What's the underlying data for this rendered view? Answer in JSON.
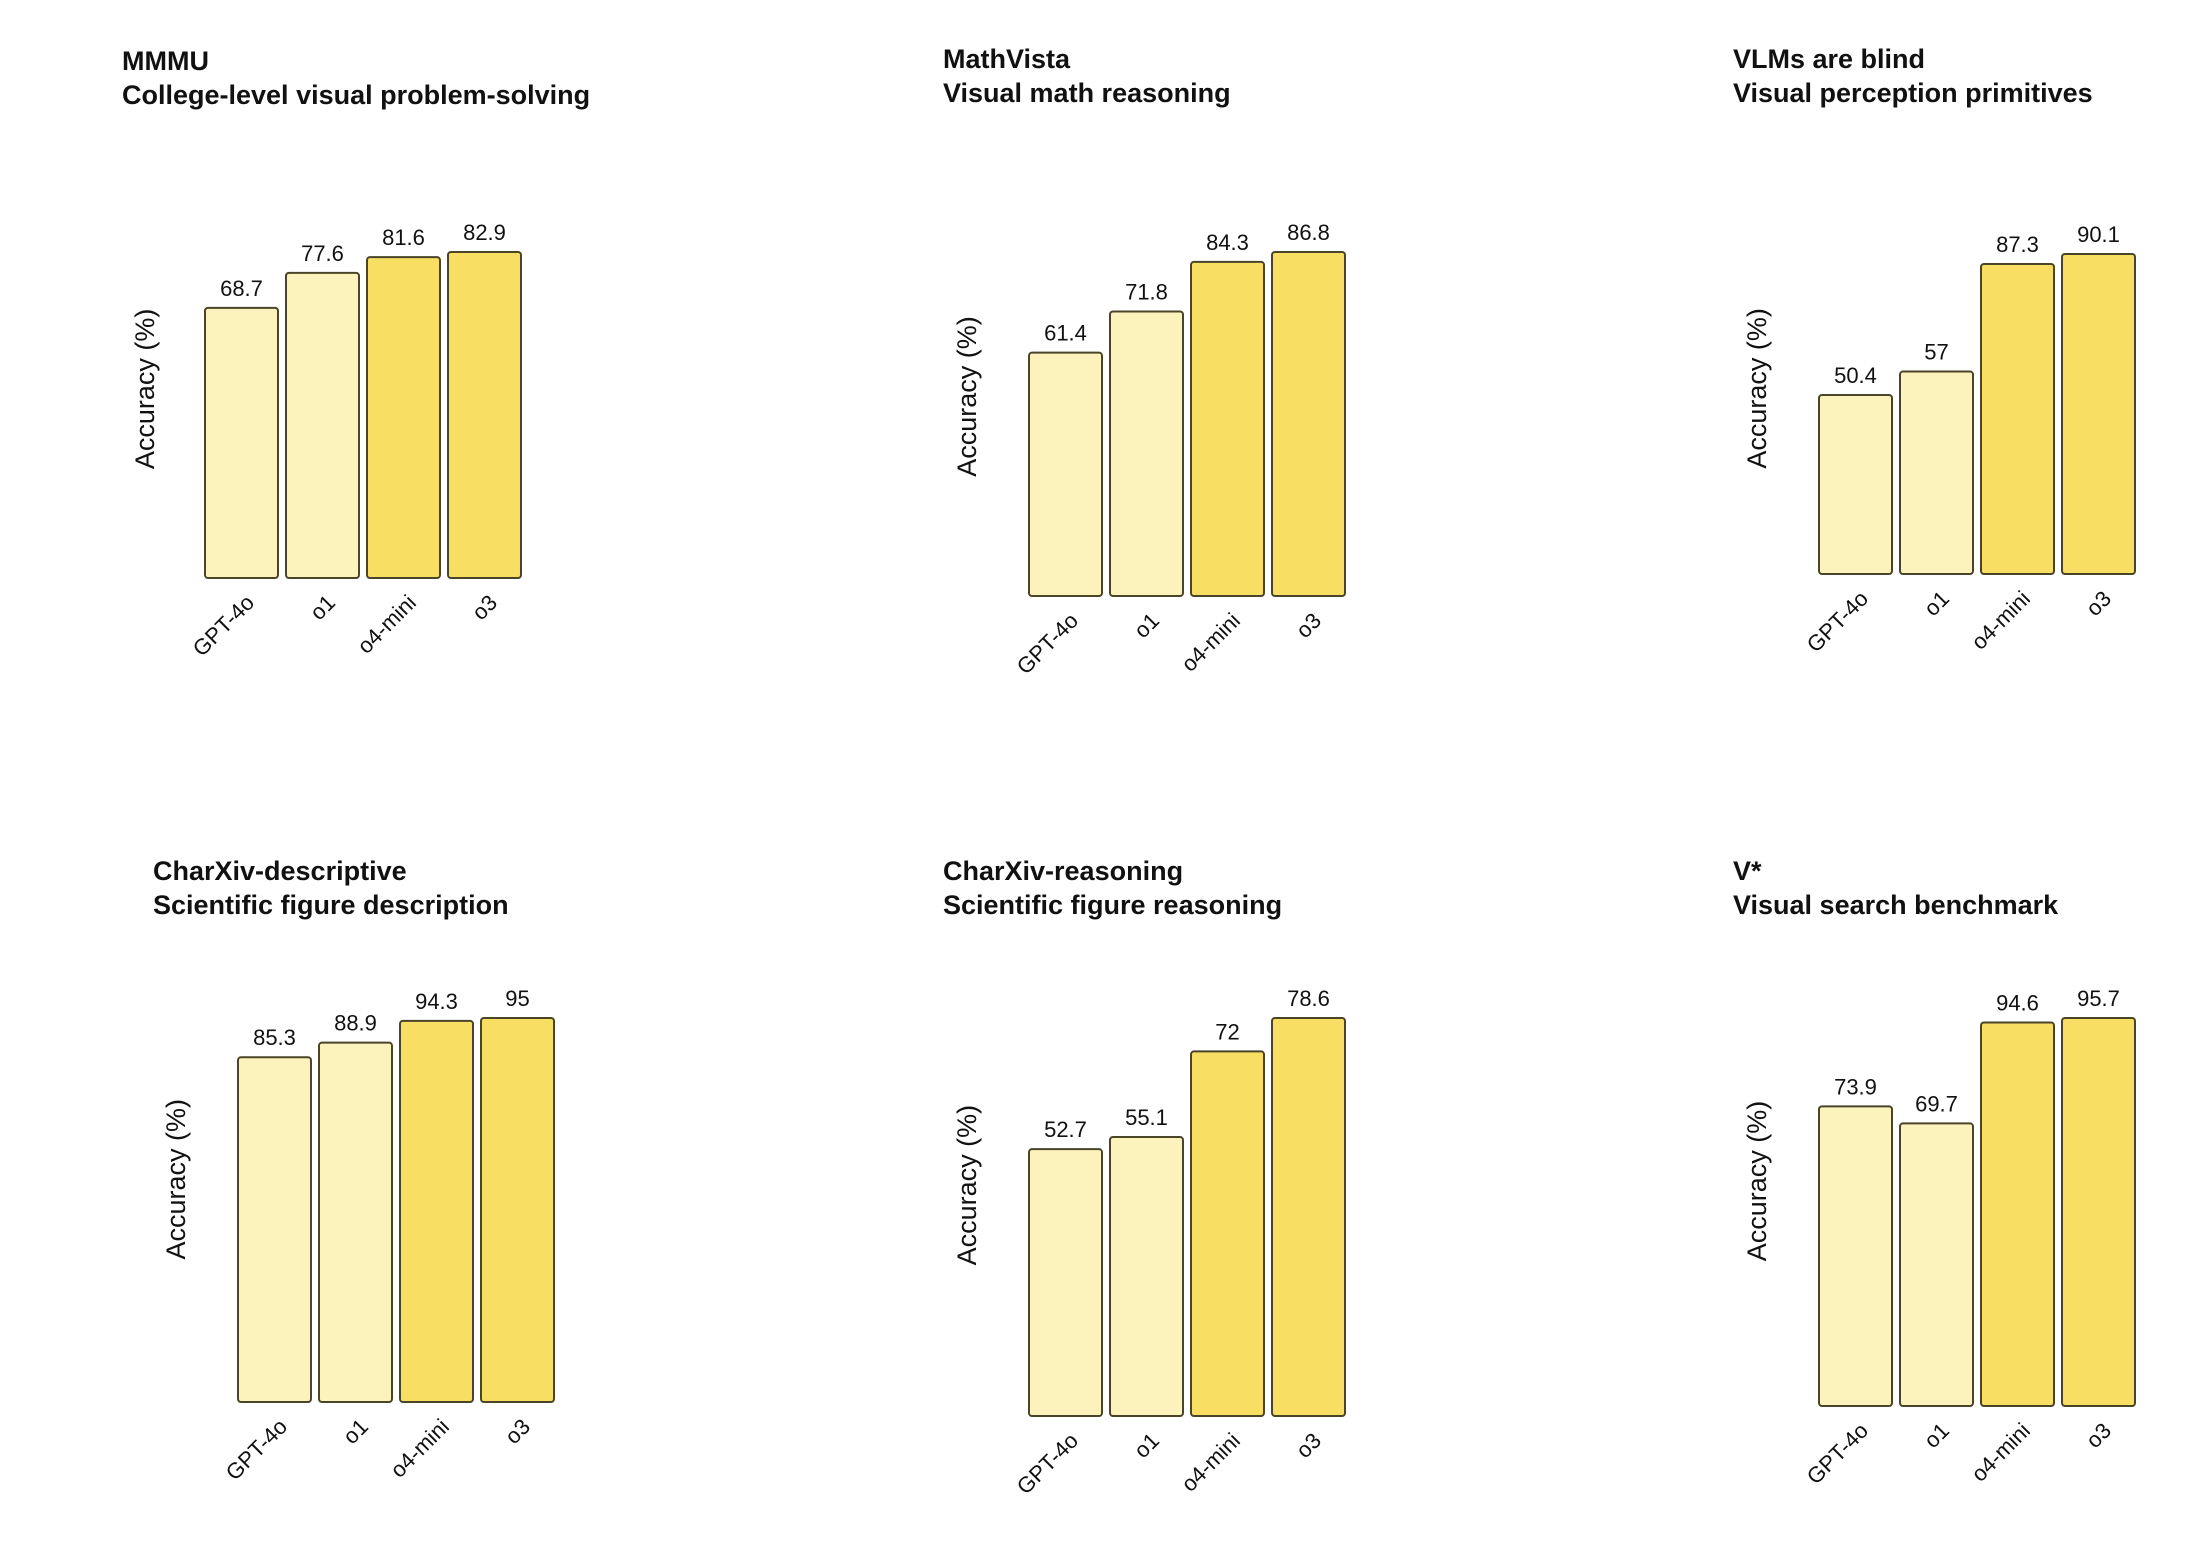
{
  "colors": {
    "older_model_fill": "#fcf2bb",
    "new_model_fill": "#f8de63",
    "bar_outline": "#4a4429"
  },
  "chart_data": [
    {
      "type": "bar",
      "title": "MMMU",
      "subtitle": "College-level visual problem-solving",
      "ylabel": "Accuracy (%)",
      "categories": [
        "GPT-4o",
        "o1",
        "o4-mini",
        "o3"
      ],
      "values": [
        68.7,
        77.6,
        81.6,
        82.9
      ],
      "value_labels": [
        "68.7",
        "77.6",
        "81.6",
        "82.9"
      ],
      "highlight": [
        false,
        false,
        true,
        true
      ],
      "ylim": [
        0,
        90
      ],
      "grid": false
    },
    {
      "type": "bar",
      "title": "MathVista",
      "subtitle": "Visual math reasoning",
      "ylabel": "Accuracy (%)",
      "categories": [
        "GPT-4o",
        "o1",
        "o4-mini",
        "o3"
      ],
      "values": [
        61.4,
        71.8,
        84.3,
        86.8
      ],
      "value_labels": [
        "61.4",
        "71.8",
        "84.3",
        "86.8"
      ],
      "highlight": [
        false,
        false,
        true,
        true
      ],
      "ylim": [
        0,
        90
      ],
      "grid": false
    },
    {
      "type": "bar",
      "title": "VLMs are blind",
      "subtitle": "Visual perception primitives",
      "ylabel": "Accuracy (%)",
      "categories": [
        "GPT-4o",
        "o1",
        "o4-mini",
        "o3"
      ],
      "values": [
        50.4,
        57,
        87.3,
        90.1
      ],
      "value_labels": [
        "50.4",
        "57",
        "87.3",
        "90.1"
      ],
      "highlight": [
        false,
        false,
        true,
        true
      ],
      "ylim": [
        0,
        90
      ],
      "grid": false
    },
    {
      "type": "bar",
      "title": "CharXiv-descriptive",
      "subtitle": "Scientific figure description",
      "ylabel": "Accuracy (%)",
      "categories": [
        "GPT-4o",
        "o1",
        "o4-mini",
        "o3"
      ],
      "values": [
        85.3,
        88.9,
        94.3,
        95
      ],
      "value_labels": [
        "85.3",
        "88.9",
        "94.3",
        "95"
      ],
      "highlight": [
        false,
        false,
        true,
        true
      ],
      "ylim": [
        0,
        100
      ],
      "grid": false
    },
    {
      "type": "bar",
      "title": "CharXiv-reasoning",
      "subtitle": "Scientific figure reasoning",
      "ylabel": "Accuracy (%)",
      "categories": [
        "GPT-4o",
        "o1",
        "o4-mini",
        "o3"
      ],
      "values": [
        52.7,
        55.1,
        72,
        78.6
      ],
      "value_labels": [
        "52.7",
        "55.1",
        "72",
        "78.6"
      ],
      "highlight": [
        false,
        false,
        true,
        true
      ],
      "ylim": [
        0,
        80
      ],
      "grid": false
    },
    {
      "type": "bar",
      "title": "V*",
      "subtitle": "Visual search benchmark",
      "ylabel": "Accuracy (%)",
      "categories": [
        "GPT-4o",
        "o1",
        "o4-mini",
        "o3"
      ],
      "values": [
        73.9,
        69.7,
        94.6,
        95.7
      ],
      "value_labels": [
        "73.9",
        "69.7",
        "94.6",
        "95.7"
      ],
      "highlight": [
        false,
        false,
        true,
        true
      ],
      "ylim": [
        0,
        100
      ],
      "grid": false
    }
  ]
}
